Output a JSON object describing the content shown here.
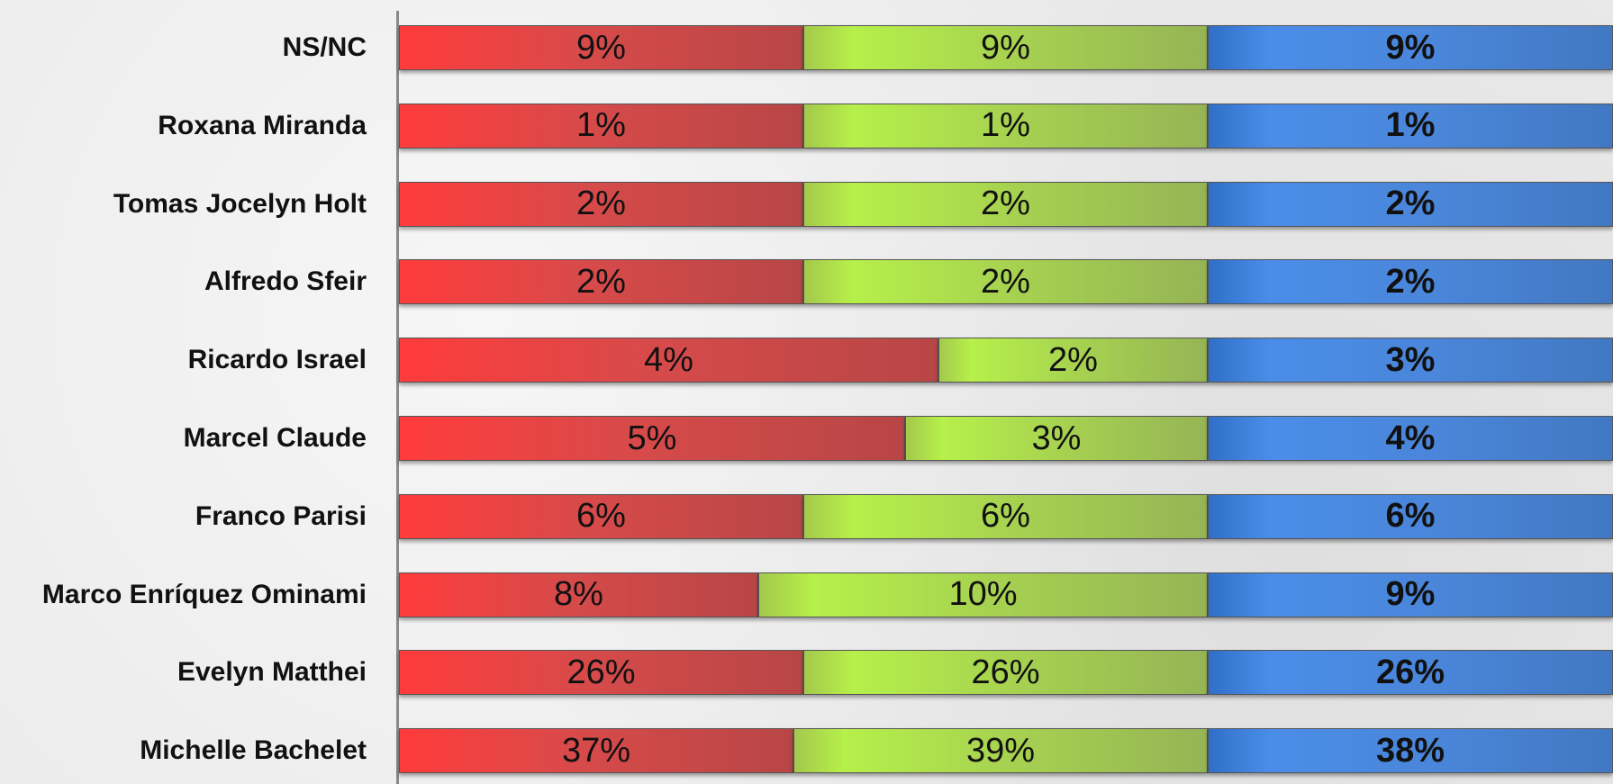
{
  "chart_data": {
    "type": "bar",
    "orientation": "horizontal",
    "stacked": true,
    "title": "",
    "xlabel": "",
    "ylabel": "",
    "categories": [
      "NS/NC",
      "Roxana Miranda",
      "Tomas Jocelyn Holt",
      "Alfredo Sfeir",
      "Ricardo Israel",
      "Marcel Claude",
      "Franco Parisi",
      "Marco Enríquez Ominami",
      "Evelyn Matthei",
      "Michelle Bachelet"
    ],
    "series": [
      {
        "color": "#d84a4a",
        "values": [
          9,
          1,
          2,
          2,
          4,
          5,
          6,
          8,
          26,
          37
        ],
        "labels": [
          "9%",
          "1%",
          "2%",
          "2%",
          "4%",
          "5%",
          "6%",
          "8%",
          "26%",
          "37%"
        ]
      },
      {
        "color": "#a7d350",
        "values": [
          9,
          1,
          2,
          2,
          2,
          3,
          6,
          10,
          26,
          39
        ],
        "labels": [
          "9%",
          "1%",
          "2%",
          "2%",
          "2%",
          "3%",
          "6%",
          "10%",
          "26%",
          "39%"
        ]
      },
      {
        "color": "#4a86da",
        "values": [
          9,
          1,
          2,
          2,
          3,
          4,
          6,
          9,
          26,
          38
        ],
        "labels": [
          "9%",
          "1%",
          "2%",
          "2%",
          "3%",
          "4%",
          "6%",
          "9%",
          "26%",
          "38%"
        ]
      }
    ],
    "segment_shares": [
      [
        0.333,
        0.333,
        0.334
      ],
      [
        0.333,
        0.333,
        0.334
      ],
      [
        0.333,
        0.333,
        0.334
      ],
      [
        0.333,
        0.333,
        0.334
      ],
      [
        0.444,
        0.222,
        0.334
      ],
      [
        0.417,
        0.249,
        0.334
      ],
      [
        0.333,
        0.333,
        0.334
      ],
      [
        0.296,
        0.37,
        0.334
      ],
      [
        0.333,
        0.333,
        0.334
      ],
      [
        0.325,
        0.341,
        0.334
      ]
    ],
    "legend": "none",
    "grid": false
  }
}
